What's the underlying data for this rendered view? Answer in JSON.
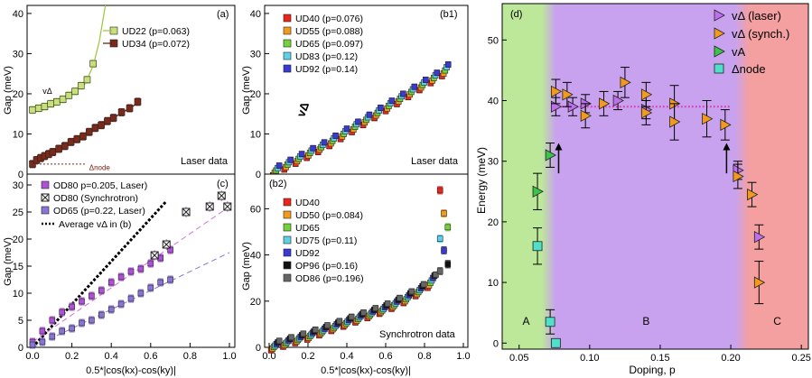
{
  "chart_data": [
    {
      "panel": "a",
      "type": "scatter",
      "panel_label": "(a)",
      "ylabel": "Gap (meV)",
      "xlabel": "",
      "xlim": [
        0,
        1
      ],
      "ylim": [
        0,
        42
      ],
      "yticks": [
        0,
        10,
        20,
        30,
        40
      ],
      "corner_note": "Laser data",
      "annotations": [
        {
          "text": "vΔ",
          "x": 0.05,
          "y": 21,
          "kind": "vdelta"
        },
        {
          "text": "Δnode",
          "x": 0.28,
          "y": 2.5,
          "kind": "dnode"
        }
      ],
      "node_line": {
        "y": 2.5,
        "x0": 0.0,
        "x1": 0.26
      },
      "series": [
        {
          "name": "UD22 (p=0.063)",
          "color": "#9cc63c",
          "fill": "#c8e07a",
          "x": [
            0.0,
            0.03,
            0.06,
            0.09,
            0.12,
            0.15,
            0.18,
            0.21,
            0.24,
            0.27,
            0.3
          ],
          "y": [
            16,
            16.4,
            16.8,
            17.5,
            18,
            18.6,
            19.6,
            20.6,
            22,
            23.5,
            27.5
          ],
          "fit": {
            "x": [
              0.0,
              0.1,
              0.2,
              0.26,
              0.3,
              0.33,
              0.36
            ],
            "y": [
              15.8,
              17.2,
              20,
              22.5,
              27,
              33,
              42
            ]
          }
        },
        {
          "name": "UD34 (p=0.072)",
          "color": "#5a1a10",
          "fill": "#7a2a1a",
          "x": [
            0.0,
            0.02,
            0.04,
            0.06,
            0.08,
            0.1,
            0.13,
            0.16,
            0.19,
            0.22,
            0.25,
            0.28,
            0.31,
            0.34,
            0.37,
            0.4,
            0.44,
            0.48,
            0.52
          ],
          "y": [
            2.5,
            3.5,
            4,
            4.5,
            5,
            5.5,
            6.3,
            7,
            8,
            8.7,
            9.4,
            10.5,
            11.5,
            12.2,
            13.2,
            14,
            15.4,
            16.4,
            18
          ],
          "fit": {
            "x": [
              0.0,
              0.1,
              0.2,
              0.3,
              0.4,
              0.5,
              0.52
            ],
            "y": [
              2.3,
              5.5,
              8.3,
              11,
              14,
              17,
              18
            ]
          }
        }
      ]
    },
    {
      "panel": "c",
      "type": "scatter",
      "panel_label": "(c)",
      "ylabel": "Gap (meV)",
      "xlabel": "0.5*|cos(kx)-cos(ky)|",
      "xlim": [
        0,
        1
      ],
      "ylim": [
        0,
        32
      ],
      "xticks": [
        0.0,
        0.2,
        0.4,
        0.6,
        0.8,
        1.0
      ],
      "xtick_labels": [
        "0.0",
        "0.2",
        "0.4",
        "0.6",
        "0.8",
        "1.0"
      ],
      "yticks": [
        0,
        5,
        10,
        15,
        20,
        25,
        30
      ],
      "series": [
        {
          "name": "OD80 p=0.205, Laser)",
          "color": "#b050d8",
          "marker": "square",
          "x": [
            0.0,
            0.05,
            0.1,
            0.15,
            0.2,
            0.25,
            0.3,
            0.35,
            0.4,
            0.45,
            0.5,
            0.55,
            0.6,
            0.65,
            0.7
          ],
          "y": [
            1,
            3,
            5,
            6.5,
            7.5,
            8.5,
            9.5,
            10.5,
            12,
            13,
            14,
            14.5,
            15.5,
            16.5,
            18
          ]
        },
        {
          "name": "OD80 (Synchrotron)",
          "color": "#333333",
          "marker": "xbox",
          "x": [
            0.62,
            0.68,
            0.78,
            0.9,
            0.96,
            0.99
          ],
          "y": [
            17,
            19,
            25,
            26,
            28,
            26
          ]
        },
        {
          "name": "OD65 (p=0.22, Laser)",
          "color": "#8a74d4",
          "marker": "square",
          "x": [
            0.0,
            0.05,
            0.1,
            0.15,
            0.2,
            0.25,
            0.3,
            0.35,
            0.4,
            0.45,
            0.5,
            0.55,
            0.6,
            0.65,
            0.7
          ],
          "y": [
            0.5,
            1,
            2,
            3,
            3.5,
            4.5,
            5,
            6,
            7,
            8,
            9,
            10,
            11,
            12,
            12.5
          ]
        }
      ],
      "lines": [
        {
          "name": "Average vΔ in (b)",
          "color": "#000000",
          "style": "dotted",
          "x": [
            0.0,
            0.68
          ],
          "y": [
            0,
            27
          ]
        },
        {
          "name": "od80-fit",
          "color": "#d070e0",
          "style": "dashed",
          "x": [
            0.0,
            1.0
          ],
          "y": [
            1,
            26
          ]
        },
        {
          "name": "od65-fit",
          "color": "#8a74d4",
          "style": "dashed",
          "x": [
            0.0,
            1.0
          ],
          "y": [
            0,
            17.5
          ]
        }
      ]
    },
    {
      "panel": "b1",
      "type": "scatter",
      "panel_label": "(b1)",
      "ylabel": "Gap (meV)",
      "xlabel": "",
      "xlim": [
        0,
        1
      ],
      "ylim": [
        0,
        42
      ],
      "yticks": [
        0,
        10,
        20,
        30,
        40
      ],
      "corner_note": "Laser data",
      "annotations": [
        {
          "text": "vΔ",
          "x": 0.18,
          "y": 14,
          "kind": "vdelta"
        }
      ],
      "series": [
        {
          "name": "UD40 (p=0.076)",
          "color": "#e8261c"
        },
        {
          "name": "UD55 (p=0.088)",
          "color": "#f29a1e"
        },
        {
          "name": "UD65 (p=0.097)",
          "color": "#74d23a"
        },
        {
          "name": "UD83 (p=0.12)",
          "color": "#5ed0e8"
        },
        {
          "name": "UD92 (p=0.14)",
          "color": "#3a3ad0"
        }
      ],
      "curve": {
        "x": [
          0.0,
          0.1,
          0.2,
          0.3,
          0.4,
          0.5,
          0.6,
          0.7,
          0.8,
          0.9,
          0.92
        ],
        "y": [
          0,
          2.5,
          5,
          7.5,
          10.5,
          13.5,
          16.5,
          19.5,
          22.5,
          25.5,
          26.5
        ]
      }
    },
    {
      "panel": "b2",
      "type": "scatter",
      "panel_label": "(b2)",
      "ylabel": "Gap (meV)",
      "xlabel": "0.5*|cos(kx)-cos(ky)|",
      "xlim": [
        0,
        1
      ],
      "ylim": [
        0,
        75
      ],
      "xticks": [
        0.0,
        0.2,
        0.4,
        0.6,
        0.8,
        1.0
      ],
      "xtick_labels": [
        "0.0",
        "0.2",
        "0.4",
        "0.6",
        "0.8",
        "1.0"
      ],
      "yticks": [
        0,
        20,
        40,
        60
      ],
      "corner_note": "Synchrotron data",
      "series": [
        {
          "name": "UD40",
          "color": "#e8261c",
          "top": 68
        },
        {
          "name": "UD50 (p=0.084)",
          "color": "#f29a1e",
          "top": 58
        },
        {
          "name": "UD65",
          "color": "#74d23a",
          "top": 52
        },
        {
          "name": "UD75 (p=0.11)",
          "color": "#5ed0e8",
          "top": 47
        },
        {
          "name": "UD92",
          "color": "#3a3ad0",
          "top": 42
        },
        {
          "name": "OP96 (p=0.16)",
          "color": "#111111",
          "top": 36
        },
        {
          "name": "OD86 (p=0.196)",
          "color": "#666666",
          "top": 33
        }
      ],
      "curve": {
        "x": [
          0.0,
          0.1,
          0.2,
          0.3,
          0.4,
          0.5,
          0.6,
          0.7,
          0.8,
          0.85
        ],
        "y": [
          0,
          2.5,
          5,
          8,
          11,
          14,
          17,
          21,
          26,
          30
        ]
      }
    },
    {
      "panel": "d",
      "type": "scatter",
      "panel_label": "(d)",
      "ylabel": "Energy (meV)",
      "xlabel": "Doping, p",
      "xlim": [
        0.038,
        0.255
      ],
      "ylim": [
        -1,
        56
      ],
      "xticks": [
        0.05,
        0.1,
        0.15,
        0.2,
        0.25
      ],
      "xtick_labels": [
        "0.05",
        "0.10",
        "0.15",
        "0.20",
        "0.25"
      ],
      "yticks": [
        0,
        10,
        20,
        30,
        40,
        50
      ],
      "regions": [
        {
          "label": "A",
          "x0": 0.038,
          "x1": 0.072,
          "color": "#bde89a"
        },
        {
          "label": "B",
          "x0": 0.072,
          "x1": 0.207,
          "color": "#c8a2ee"
        },
        {
          "label": "C",
          "x0": 0.207,
          "x1": 0.255,
          "color": "#f4a0a0"
        }
      ],
      "region_labels": [
        "A",
        "B",
        "C"
      ],
      "region_label_x": [
        0.055,
        0.14,
        0.233
      ],
      "region_label_y": 3,
      "hline": {
        "y": 39,
        "x0": 0.075,
        "x1": 0.2,
        "color": "#e040c0"
      },
      "arrows": [
        {
          "x": 0.078,
          "y0": 33,
          "y1": 28
        },
        {
          "x": 0.197,
          "y0": 33,
          "y1": 28
        }
      ],
      "series": [
        {
          "name": "vΔ (laser)",
          "color": "#c070ec",
          "marker": "triangle-right",
          "x": [
            0.076,
            0.088,
            0.097,
            0.12,
            0.14,
            0.205,
            0.22
          ],
          "y": [
            39,
            39,
            39.5,
            40,
            38.5,
            28.5,
            17.5
          ],
          "err": [
            1.5,
            1.5,
            1.5,
            1.5,
            1.5,
            1.5,
            2
          ]
        },
        {
          "name": "vΔ (synch.)",
          "color": "#f29a1e",
          "marker": "triangle-right",
          "x": [
            0.076,
            0.084,
            0.097,
            0.11,
            0.125,
            0.14,
            0.14,
            0.16,
            0.16,
            0.183,
            0.196,
            0.205,
            0.215,
            0.22
          ],
          "y": [
            41.5,
            41,
            37.5,
            39.5,
            43,
            41,
            38,
            39.5,
            36.5,
            37,
            36,
            27.5,
            24.5,
            10
          ],
          "err": [
            2,
            2,
            2,
            2,
            2.5,
            2,
            2,
            3,
            3,
            3,
            2.5,
            2,
            2,
            3.5
          ]
        },
        {
          "name": "vA",
          "color": "#3cc44a",
          "marker": "triangle-right",
          "x": [
            0.063,
            0.072
          ],
          "y": [
            25,
            31
          ],
          "err": [
            3,
            2
          ]
        },
        {
          "name": "Δnode",
          "color": "#4ee0c8",
          "marker": "square",
          "x": [
            0.063,
            0.072,
            0.076
          ],
          "y": [
            16,
            3.5,
            0
          ],
          "err": [
            3,
            2,
            0.5
          ]
        }
      ],
      "legend_labels": [
        "vΔ (laser)",
        "vΔ (synch.)",
        "vA",
        "Δnode"
      ]
    }
  ]
}
